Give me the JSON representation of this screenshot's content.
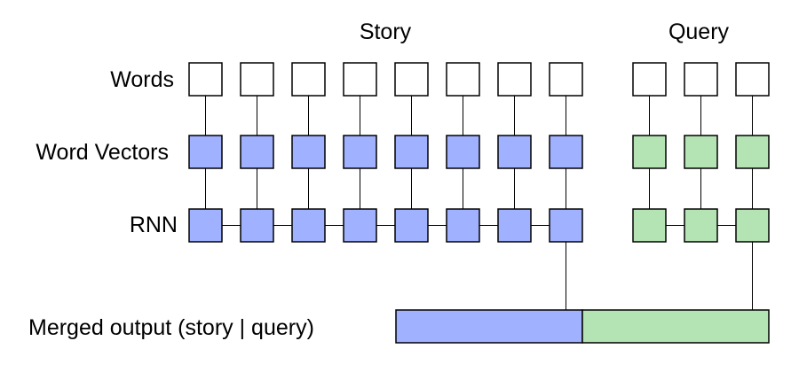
{
  "headers": {
    "story": "Story",
    "query": "Query"
  },
  "row_labels": {
    "words": "Words",
    "word_vectors": "Word Vectors",
    "rnn": "RNN",
    "merged": "Merged output (story | query)"
  },
  "story_length": 8,
  "query_length": 3,
  "colors": {
    "word_box": "#ffffff",
    "story_vector": "#a0b1ff",
    "query_vector": "#b4e4b4",
    "outline": "#000000"
  }
}
